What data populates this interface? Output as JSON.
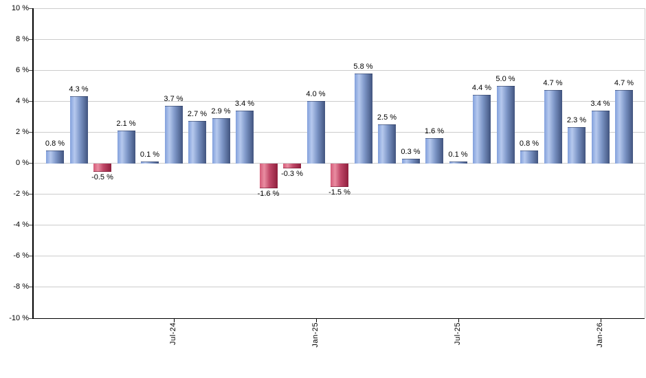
{
  "chart_data": {
    "type": "bar",
    "title": "",
    "xlabel": "",
    "ylabel": "",
    "ylim": [
      -10,
      10
    ],
    "grid": true,
    "legend": "none",
    "bars": [
      {
        "value": 0.8,
        "label": "0.8 %"
      },
      {
        "value": 4.3,
        "label": "4.3 %"
      },
      {
        "value": -0.5,
        "label": "-0.5 %"
      },
      {
        "value": 2.1,
        "label": "2.1 %"
      },
      {
        "value": 0.1,
        "label": "0.1 %"
      },
      {
        "value": 3.7,
        "label": "3.7 %"
      },
      {
        "value": 2.7,
        "label": "2.7 %"
      },
      {
        "value": 2.9,
        "label": "2.9 %"
      },
      {
        "value": 3.4,
        "label": "3.4 %"
      },
      {
        "value": -1.6,
        "label": "-1.6 %"
      },
      {
        "value": -0.3,
        "label": "-0.3 %"
      },
      {
        "value": 4.0,
        "label": "4.0 %"
      },
      {
        "value": -1.5,
        "label": "-1.5 %"
      },
      {
        "value": 5.8,
        "label": "5.8 %"
      },
      {
        "value": 2.5,
        "label": "2.5 %"
      },
      {
        "value": 0.3,
        "label": "0.3 %"
      },
      {
        "value": 1.6,
        "label": "1.6 %"
      },
      {
        "value": 0.1,
        "label": "0.1 %"
      },
      {
        "value": 4.4,
        "label": "4.4 %"
      },
      {
        "value": 5.0,
        "label": "5.0 %"
      },
      {
        "value": 0.8,
        "label": "0.8 %"
      },
      {
        "value": 4.7,
        "label": "4.7 %"
      },
      {
        "value": 2.3,
        "label": "2.3 %"
      },
      {
        "value": 3.4,
        "label": "3.4 %"
      },
      {
        "value": 4.7,
        "label": "4.7 %"
      }
    ],
    "x_ticks": [
      {
        "bar_index": 5,
        "label": "Jul-24"
      },
      {
        "bar_index": 11,
        "label": "Jan-25"
      },
      {
        "bar_index": 17,
        "label": "Jul-25"
      },
      {
        "bar_index": 23,
        "label": "Jan-26"
      }
    ],
    "y_ticks": [
      {
        "value": 10,
        "label": "10 %"
      },
      {
        "value": 8,
        "label": "8 %"
      },
      {
        "value": 6,
        "label": "6 %"
      },
      {
        "value": 4,
        "label": "4 %"
      },
      {
        "value": 2,
        "label": "2 %"
      },
      {
        "value": 0,
        "label": "0 %"
      },
      {
        "value": -2,
        "label": "-2 %"
      },
      {
        "value": -4,
        "label": "-4 %"
      },
      {
        "value": -6,
        "label": "-6 %"
      },
      {
        "value": -8,
        "label": "-8 %"
      },
      {
        "value": -10,
        "label": "-10 %"
      }
    ],
    "colors": {
      "positive_gradient": [
        "#82a0dc",
        "#b6c9ee",
        "#7e97c8",
        "#41547f"
      ],
      "negative_gradient": [
        "#d45a78",
        "#e98da1",
        "#c04868",
        "#8f1f3d"
      ],
      "grid": "#cccccc",
      "axis": "#000000",
      "label_text": "#000000",
      "background": "#ffffff"
    }
  }
}
